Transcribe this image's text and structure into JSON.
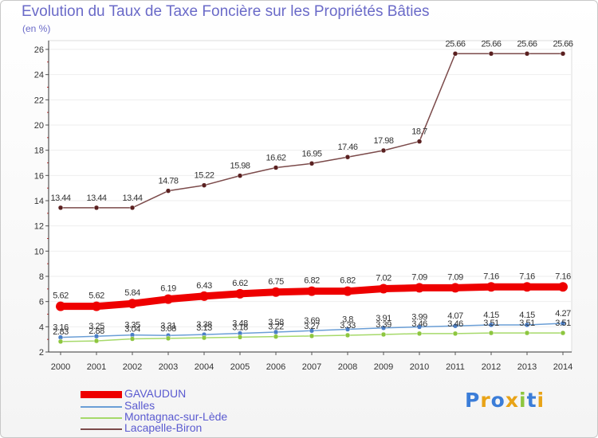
{
  "title": "Evolution du Taux de Taxe Foncière sur les Propriétés Bâties",
  "unit_label": "(en %)",
  "logo": "Proxiti",
  "chart_data": {
    "type": "line",
    "title": "Evolution du Taux de Taxe Foncière sur les Propriétés Bâties",
    "ylabel": "(en %)",
    "xlabel": "",
    "ylim": [
      2,
      26
    ],
    "yticks": [
      "2",
      "4",
      "6",
      "8",
      "10",
      "12",
      "14",
      "16",
      "18",
      "20",
      "22",
      "24",
      "26"
    ],
    "categories": [
      "2000",
      "2001",
      "2002",
      "2003",
      "2004",
      "2005",
      "2006",
      "2007",
      "2008",
      "2009",
      "2010",
      "2011",
      "2012",
      "2013",
      "2014"
    ],
    "series": [
      {
        "name": "Lacapelle-Biron",
        "color": "#7b4a4a",
        "values": [
          13.44,
          13.44,
          13.44,
          14.78,
          15.22,
          15.98,
          16.62,
          16.95,
          17.46,
          17.98,
          18.7,
          25.66,
          25.66,
          25.66,
          25.66
        ],
        "labels": [
          "13.44",
          "13.44",
          "13.44",
          "14.78",
          "15.22",
          "15.98",
          "16.62",
          "16.95",
          "17.46",
          "17.98",
          "18.7",
          "25.66",
          "25.66",
          "25.66",
          "25.66"
        ]
      },
      {
        "name": "Salles",
        "color": "#6a9ed6",
        "values": [
          3.16,
          3.25,
          3.35,
          3.31,
          3.38,
          3.48,
          3.58,
          3.69,
          3.8,
          3.91,
          3.99,
          4.07,
          4.15,
          4.15,
          4.27
        ],
        "labels": [
          "3.16",
          "3.25",
          "3.35",
          "3.31",
          "3.38",
          "3.48",
          "3.58",
          "3.69",
          "3.8",
          "3.91",
          "3.99",
          "4.07",
          "4.15",
          "4.15",
          "4.27"
        ]
      },
      {
        "name": "Montagnac-sur-Lède",
        "color": "#a6d96a",
        "values": [
          2.83,
          2.88,
          3.04,
          3.08,
          3.13,
          3.18,
          3.22,
          3.27,
          3.33,
          3.39,
          3.46,
          3.46,
          3.51,
          3.51,
          3.51
        ],
        "labels": [
          "2.83",
          "2.88",
          "3.04",
          "3.08",
          "3.13",
          "3.18",
          "3.22",
          "3.27",
          "3.33",
          "3.39",
          "3.46",
          "3.46",
          "3.51",
          "3.51",
          "3.51"
        ]
      },
      {
        "name": "GAVAUDUN",
        "color": "#ee0000",
        "values": [
          5.62,
          5.62,
          5.84,
          6.19,
          6.43,
          6.62,
          6.75,
          6.82,
          6.82,
          7.02,
          7.09,
          7.09,
          7.16,
          7.16,
          7.16
        ],
        "labels": [
          "5.62",
          "5.62",
          "5.84",
          "6.19",
          "6.43",
          "6.62",
          "6.75",
          "6.82",
          "6.82",
          "7.02",
          "7.09",
          "7.09",
          "7.16",
          "7.16",
          "7.16"
        ]
      }
    ],
    "legend": [
      {
        "name": "GAVAUDUN",
        "color": "#ee0000"
      },
      {
        "name": "Salles",
        "color": "#6a9ed6"
      },
      {
        "name": "Montagnac-sur-Lède",
        "color": "#a6d96a"
      },
      {
        "name": "Lacapelle-Biron",
        "color": "#7b4a4a"
      }
    ]
  }
}
